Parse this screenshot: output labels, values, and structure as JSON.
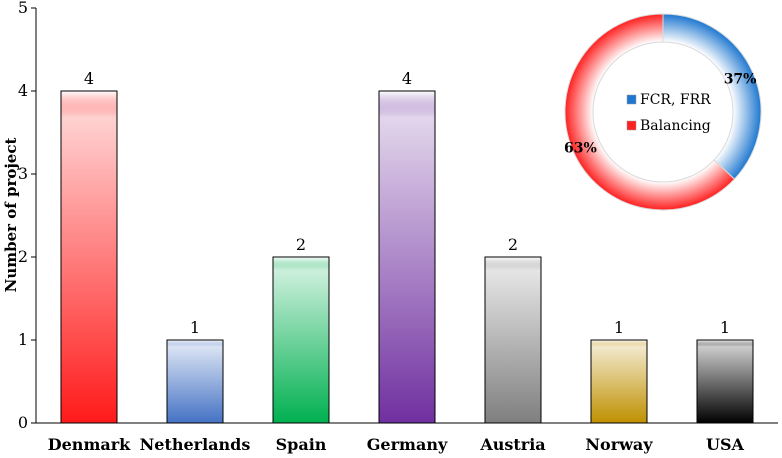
{
  "chart_data": [
    {
      "type": "bar",
      "categories": [
        "Denmark",
        "Netherlands",
        "Spain",
        "Germany",
        "Austria",
        "Norway",
        "USA"
      ],
      "values": [
        4,
        1,
        2,
        4,
        2,
        1,
        1
      ],
      "data_labels": [
        "4",
        "1",
        "2",
        "4",
        "2",
        "1",
        "1"
      ],
      "ylabel": "Number of project",
      "ylim": [
        0,
        5
      ],
      "yticks": [
        "0",
        "1",
        "2",
        "3",
        "4",
        "5"
      ],
      "grid": false,
      "colors": [
        "#ff1a1a",
        "#4472c4",
        "#00b050",
        "#7030a0",
        "#7f7f7f",
        "#bf9000",
        "#000000"
      ]
    },
    {
      "type": "pie",
      "donut": true,
      "legend_position": "center",
      "slices": [
        {
          "name": "FCR, FRR",
          "value": 37,
          "label": "37%",
          "color": "#1f78d0"
        },
        {
          "name": "Balancing",
          "value": 63,
          "label": "63%",
          "color": "#ff2020"
        }
      ]
    }
  ]
}
